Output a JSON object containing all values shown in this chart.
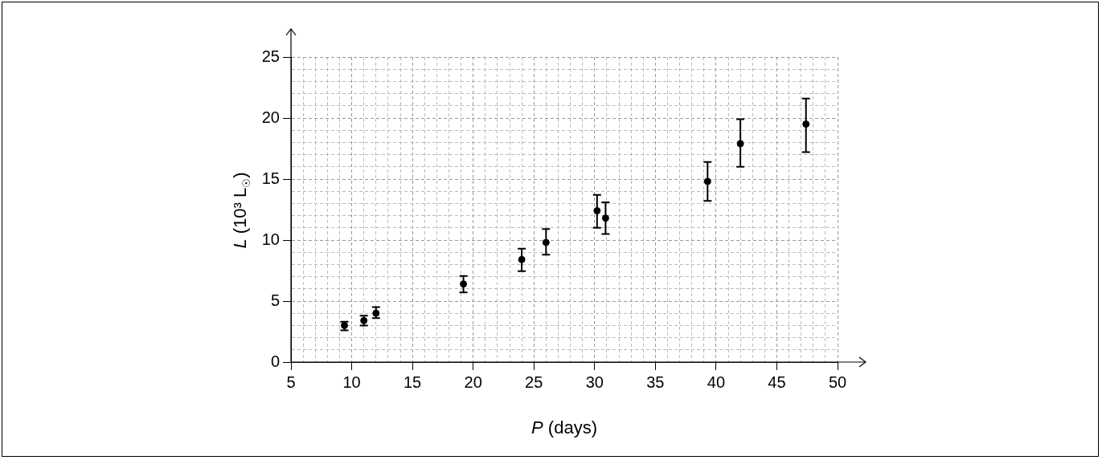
{
  "chart_data": {
    "type": "scatter",
    "xlabel": "P (days)",
    "ylabel": "L (10³ L$_{☉}$)",
    "x": [
      9.4,
      11.0,
      12.0,
      19.2,
      24.0,
      26.0,
      30.2,
      30.9,
      39.3,
      42.0,
      47.4
    ],
    "values": [
      3.0,
      3.4,
      4.0,
      6.4,
      8.4,
      9.8,
      12.4,
      11.8,
      14.8,
      17.9,
      19.5
    ],
    "errors": [
      [
        2.6,
        3.3
      ],
      [
        3.0,
        3.8
      ],
      [
        3.6,
        4.5
      ],
      [
        5.7,
        7.05
      ],
      [
        7.45,
        9.3
      ],
      [
        8.8,
        10.9
      ],
      [
        11.0,
        13.7
      ],
      [
        10.5,
        13.1
      ],
      [
        13.2,
        16.4
      ],
      [
        16.0,
        19.9
      ],
      [
        17.2,
        21.6
      ]
    ],
    "color": "#000000",
    "marker": "circle",
    "grid": true,
    "xlim": [
      5,
      50
    ],
    "ylim": [
      0,
      25
    ],
    "xticks": [
      5,
      {
        "value": 6,
        "label": null
      },
      {
        "value": 7,
        "label": null
      },
      {
        "value": 8,
        "label": null
      },
      {
        "value": 9,
        "label": null
      },
      10,
      {
        "value": 11,
        "label": null
      },
      {
        "value": 12,
        "label": null
      },
      {
        "value": 13,
        "label": null
      },
      {
        "value": 14,
        "label": null
      },
      15,
      {
        "value": 16,
        "label": null
      },
      {
        "value": 17,
        "label": null
      },
      {
        "value": 18,
        "label": null
      },
      {
        "value": 19,
        "label": null
      },
      20,
      {
        "value": 21,
        "label": null
      },
      {
        "value": 22,
        "label": null
      },
      {
        "value": 23,
        "label": null
      },
      {
        "value": 24,
        "label": null
      },
      25,
      {
        "value": 26,
        "label": null
      },
      {
        "value": 27,
        "label": null
      },
      {
        "value": 28,
        "label": null
      },
      {
        "value": 29,
        "label": null
      },
      30,
      {
        "value": 31,
        "label": null
      },
      {
        "value": 32,
        "label": null
      },
      {
        "value": 33,
        "label": null
      },
      {
        "value": 34,
        "label": null
      },
      35,
      {
        "value": 36,
        "label": null
      },
      {
        "value": 37,
        "label": null
      },
      {
        "value": 38,
        "label": null
      },
      {
        "value": 39,
        "label": null
      },
      40,
      {
        "value": 41,
        "label": null
      },
      {
        "value": 42,
        "label": null
      },
      {
        "value": 43,
        "label": null
      },
      {
        "value": 44,
        "label": null
      },
      45,
      {
        "value": 46,
        "label": null
      },
      {
        "value": 47,
        "label": null
      },
      {
        "value": 48,
        "label": null
      },
      {
        "value": 49,
        "label": null
      },
      50
    ],
    "yticks": [
      0,
      {
        "value": 1,
        "label": null
      },
      {
        "value": 2,
        "label": null
      },
      {
        "value": 3,
        "label": null
      },
      {
        "value": 4,
        "label": null
      },
      5,
      {
        "value": 6,
        "label": null
      },
      {
        "value": 7,
        "label": null
      },
      {
        "value": 8,
        "label": null
      },
      {
        "value": 9,
        "label": null
      },
      10,
      {
        "value": 11,
        "label": null
      },
      {
        "value": 12,
        "label": null
      },
      {
        "value": 13,
        "label": null
      },
      {
        "value": 14,
        "label": null
      },
      15,
      {
        "value": 16,
        "label": null
      },
      {
        "value": 17,
        "label": null
      },
      {
        "value": 18,
        "label": null
      },
      {
        "value": 19,
        "label": null
      },
      20,
      {
        "value": 21,
        "label": null
      },
      {
        "value": 22,
        "label": null
      },
      {
        "value": 23,
        "label": null
      },
      {
        "value": 24,
        "label": null
      },
      25
    ]
  }
}
